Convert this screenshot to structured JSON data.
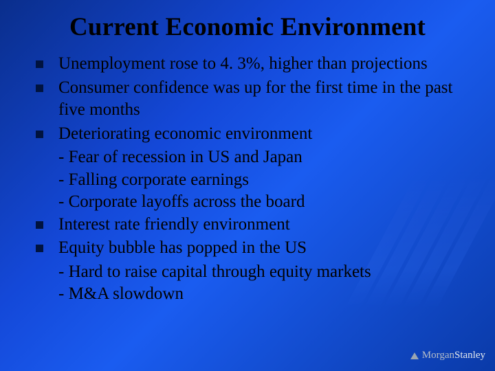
{
  "slide": {
    "title": "Current Economic Environment",
    "background_gradient": [
      "#0a2e8c",
      "#1448d8",
      "#1a5cf0",
      "#0a3aa8"
    ],
    "text_color": "#000000",
    "bullet_color": "#00133f",
    "title_fontsize": 37,
    "body_fontsize": 25,
    "font_family": "Times New Roman",
    "bullets": [
      {
        "text": "Unemployment rose to 4. 3%, higher than projections",
        "subs": []
      },
      {
        "text": "Consumer confidence was up for the first time in the past five months",
        "subs": []
      },
      {
        "text": "Deteriorating economic environment",
        "subs": [
          "- Fear of recession in US and Japan",
          "- Falling corporate earnings",
          "- Corporate layoffs across the board"
        ]
      },
      {
        "text": "Interest rate friendly environment",
        "subs": []
      },
      {
        "text": "Equity bubble has popped in the US",
        "subs": [
          "- Hard to raise capital through equity markets",
          "- M&A slowdown"
        ]
      }
    ],
    "logo": {
      "first": "Morgan",
      "second": "Stanley",
      "triangle_color": "#9aa6b2"
    },
    "decor": {
      "chevron_count": 5,
      "chevron_color": "#2b5ae0",
      "chevron_opacity": 0.35
    }
  }
}
